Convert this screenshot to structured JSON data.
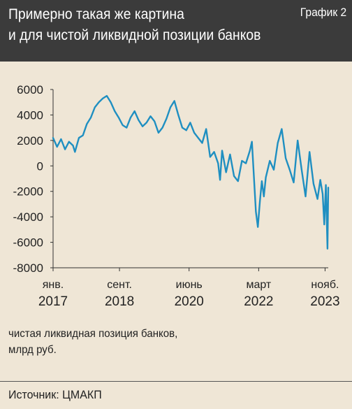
{
  "header": {
    "title_line1": "Примерно такая же картина",
    "title_line2": "и для чистой ликвидной позиции банков",
    "badge": "График 2"
  },
  "caption": {
    "line1": "чистая ликвидная позиция банков,",
    "line2": "млрд руб."
  },
  "source": "Источник: ЦМАКП",
  "colors": {
    "header_bg": "#3b3b3b",
    "background": "#efe6d6",
    "series": "#1f8fc1"
  },
  "chart_data": {
    "type": "line",
    "title": "",
    "xlabel": "",
    "ylabel": "",
    "ylim": [
      -8000,
      6000
    ],
    "xlim": [
      2017.0,
      2023.92
    ],
    "yticks": [
      6000,
      4000,
      2000,
      0,
      -2000,
      -4000,
      -6000,
      -8000
    ],
    "ytick_labels": [
      "6000",
      "4000",
      "2000",
      "0",
      "-2000",
      "-4000",
      "-6000",
      "-8000"
    ],
    "xticks": [
      {
        "pos": 2017.0,
        "line1": "янв.",
        "line2": "2017"
      },
      {
        "pos": 2018.67,
        "line1": "сент.",
        "line2": "2018"
      },
      {
        "pos": 2020.42,
        "line1": "июнь",
        "line2": "2020"
      },
      {
        "pos": 2022.17,
        "line1": "март",
        "line2": "2022"
      },
      {
        "pos": 2023.84,
        "line1": "нояб.",
        "line2": "2023"
      }
    ],
    "grid": false,
    "series": [
      {
        "x": [
          2017.0,
          2017.1,
          2017.2,
          2017.3,
          2017.4,
          2017.5,
          2017.55,
          2017.65,
          2017.75,
          2017.85,
          2017.95,
          2018.05,
          2018.15,
          2018.25,
          2018.35,
          2018.45,
          2018.55,
          2018.65,
          2018.75,
          2018.85,
          2018.95,
          2019.05,
          2019.15,
          2019.25,
          2019.35,
          2019.45,
          2019.55,
          2019.65,
          2019.75,
          2019.85,
          2019.95,
          2020.05,
          2020.15,
          2020.25,
          2020.35,
          2020.45,
          2020.55,
          2020.65,
          2020.75,
          2020.85,
          2020.95,
          2021.05,
          2021.15,
          2021.2,
          2021.25,
          2021.35,
          2021.45,
          2021.55,
          2021.65,
          2021.75,
          2021.85,
          2021.95,
          2022.0,
          2022.05,
          2022.1,
          2022.15,
          2022.2,
          2022.25,
          2022.3,
          2022.35,
          2022.45,
          2022.55,
          2022.65,
          2022.75,
          2022.85,
          2022.95,
          2023.05,
          2023.15,
          2023.25,
          2023.35,
          2023.45,
          2023.55,
          2023.65,
          2023.72,
          2023.78,
          2023.82,
          2023.86,
          2023.9,
          2023.92
        ],
        "y": [
          2200,
          1500,
          2100,
          1300,
          1900,
          1600,
          1100,
          2200,
          2400,
          3300,
          3800,
          4600,
          5000,
          5300,
          5500,
          5000,
          4300,
          3800,
          3200,
          3000,
          3800,
          4300,
          3600,
          3100,
          3400,
          3900,
          3500,
          2600,
          3000,
          3700,
          4600,
          5100,
          4000,
          3000,
          2800,
          3400,
          2600,
          2200,
          1800,
          2900,
          700,
          1100,
          200,
          -1100,
          1200,
          -500,
          900,
          -800,
          -1200,
          400,
          200,
          1200,
          1900,
          -800,
          -3600,
          -4800,
          -2800,
          -1200,
          -2400,
          -900,
          400,
          -300,
          1800,
          2900,
          600,
          -300,
          -1300,
          2000,
          -300,
          -2400,
          1100,
          -1400,
          -2600,
          -1100,
          -2200,
          -4600,
          -1500,
          -6500,
          -1700
        ]
      }
    ]
  }
}
